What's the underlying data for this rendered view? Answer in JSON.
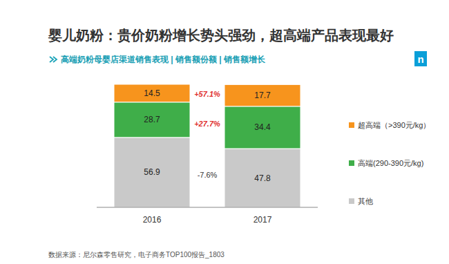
{
  "chart_data": {
    "type": "bar",
    "stacked": true,
    "data_labels": true,
    "tick_labels": "x",
    "legend": "right",
    "title": "婴儿奶粉：贵价奶粉增长势头强劲，超高端产品表现最好",
    "subtitle": "高端奶粉母婴店渠道销售表现 | 销售额份额 | 销售额增长",
    "logo": "n",
    "source": "数据来源：尼尔森零售研究，电子商务TOP100报告_1803",
    "categories": [
      "2016",
      "2017"
    ],
    "ylim": [
      0,
      100.1
    ],
    "series": [
      {
        "name": "其他",
        "color": "#c9c9c9",
        "values": [
          56.9,
          47.8
        ],
        "growth": -7.6,
        "growth_label": "-7.6%"
      },
      {
        "name": "高端(290-390元/kg)",
        "color": "#3fae49",
        "values": [
          28.7,
          34.4
        ],
        "growth": 27.7,
        "growth_label": "+27.7%"
      },
      {
        "name": "超高端（>390元/kg）",
        "color": "#f7941d",
        "values": [
          14.5,
          17.7
        ],
        "growth": 57.1,
        "growth_label": "+57.1%"
      }
    ]
  }
}
